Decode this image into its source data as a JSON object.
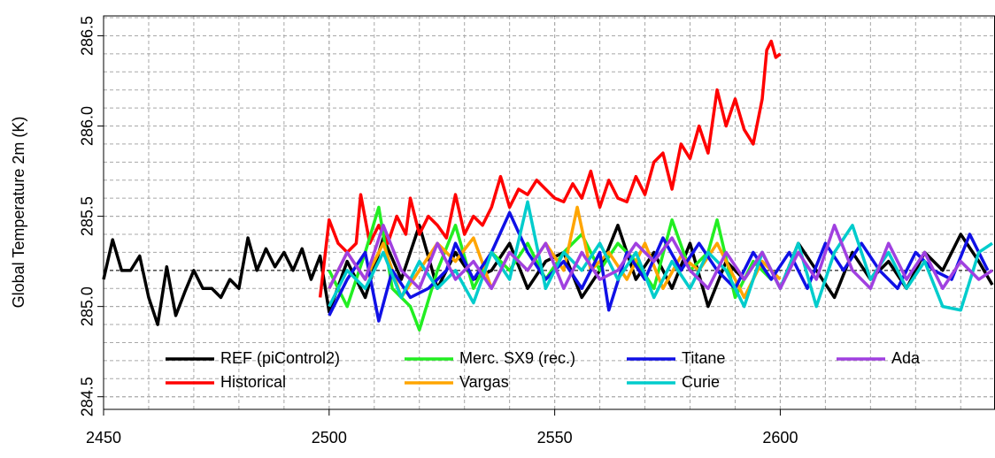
{
  "chart_data": {
    "type": "line",
    "y_label": "Global Temperature 2m (K)",
    "xlim": [
      2450,
      2647.5
    ],
    "ylim": [
      284.43,
      286.61
    ],
    "xticks": [
      2450,
      2500,
      2550,
      2600
    ],
    "yticks": [
      284.5,
      {
        "value": 285,
        "label": "285.0"
      },
      285.5,
      {
        "value": 286,
        "label": "286.0"
      },
      286.5
    ],
    "grid": true,
    "reference_line": 285.2,
    "legend": "bottom",
    "series": [
      {
        "name": "REF (piControl2)",
        "color": "#000000",
        "x": [
          2450,
          2452,
          2454,
          2456,
          2458,
          2460,
          2462,
          2464,
          2466,
          2468,
          2470,
          2472,
          2474,
          2476,
          2478,
          2480,
          2482,
          2484,
          2486,
          2488,
          2490,
          2492,
          2494,
          2496,
          2498,
          2500,
          2504,
          2508,
          2512,
          2516,
          2520,
          2524,
          2528,
          2532,
          2536,
          2540,
          2544,
          2548,
          2552,
          2556,
          2560,
          2564,
          2568,
          2572,
          2576,
          2580,
          2584,
          2588,
          2592,
          2596,
          2600,
          2604,
          2608,
          2612,
          2616,
          2620,
          2624,
          2628,
          2632,
          2636,
          2640,
          2644,
          2647
        ],
        "values": [
          285.15,
          285.37,
          285.2,
          285.2,
          285.28,
          285.05,
          284.9,
          285.22,
          284.95,
          285.08,
          285.2,
          285.1,
          285.1,
          285.05,
          285.15,
          285.1,
          285.38,
          285.2,
          285.32,
          285.22,
          285.3,
          285.2,
          285.32,
          285.15,
          285.28,
          284.97,
          285.25,
          285.05,
          285.38,
          285.15,
          285.45,
          285.1,
          285.3,
          285.15,
          285.2,
          285.35,
          285.1,
          285.25,
          285.3,
          285.05,
          285.2,
          285.45,
          285.15,
          285.3,
          285.1,
          285.35,
          285.0,
          285.25,
          285.15,
          285.3,
          285.1,
          285.35,
          285.2,
          285.05,
          285.3,
          285.15,
          285.25,
          285.1,
          285.3,
          285.2,
          285.4,
          285.25,
          285.12
        ]
      },
      {
        "name": "Historical",
        "color": "#ff0000",
        "x": [
          2498,
          2500,
          2502,
          2504,
          2506,
          2507,
          2509,
          2511,
          2513,
          2515,
          2517,
          2518,
          2520,
          2522,
          2524,
          2526,
          2528,
          2530,
          2532,
          2534,
          2536,
          2538,
          2540,
          2542,
          2544,
          2546,
          2548,
          2550,
          2552,
          2554,
          2556,
          2558,
          2560,
          2562,
          2564,
          2566,
          2568,
          2570,
          2572,
          2574,
          2576,
          2578,
          2580,
          2582,
          2584,
          2586,
          2588,
          2590,
          2592,
          2594,
          2596,
          2597,
          2598,
          2599,
          2600
        ],
        "values": [
          285.05,
          285.48,
          285.35,
          285.3,
          285.35,
          285.62,
          285.35,
          285.45,
          285.35,
          285.5,
          285.4,
          285.6,
          285.4,
          285.5,
          285.45,
          285.38,
          285.62,
          285.4,
          285.5,
          285.45,
          285.55,
          285.72,
          285.55,
          285.65,
          285.62,
          285.7,
          285.65,
          285.6,
          285.58,
          285.68,
          285.6,
          285.75,
          285.55,
          285.7,
          285.6,
          285.58,
          285.72,
          285.62,
          285.8,
          285.85,
          285.65,
          285.9,
          285.82,
          286.0,
          285.85,
          286.2,
          286.0,
          286.15,
          285.98,
          285.9,
          286.15,
          286.42,
          286.47,
          286.38,
          286.4
        ]
      },
      {
        "name": "Merc. SX9 (rec.)",
        "color": "#22ee22",
        "x": [
          2500,
          2504,
          2508,
          2511,
          2514,
          2518,
          2520,
          2524,
          2528,
          2532,
          2536,
          2540,
          2544,
          2548,
          2552,
          2556,
          2560,
          2564,
          2568,
          2572,
          2576,
          2580,
          2584,
          2586,
          2590,
          2594,
          2598
        ],
        "values": [
          285.2,
          285.0,
          285.3,
          285.55,
          285.1,
          285.0,
          284.87,
          285.2,
          285.45,
          285.1,
          285.3,
          285.2,
          285.35,
          285.15,
          285.3,
          285.4,
          285.2,
          285.35,
          285.25,
          285.1,
          285.48,
          285.2,
          285.3,
          285.48,
          285.05,
          285.25,
          285.15
        ]
      },
      {
        "name": "Vargas",
        "color": "#ffa500",
        "x": [
          2500,
          2504,
          2508,
          2512,
          2516,
          2520,
          2524,
          2528,
          2532,
          2536,
          2540,
          2544,
          2548,
          2552,
          2555,
          2558,
          2562,
          2566,
          2570,
          2574,
          2578,
          2582,
          2586,
          2590,
          2592,
          2596,
          2600
        ],
        "values": [
          285.1,
          285.3,
          285.15,
          285.35,
          285.05,
          285.2,
          285.35,
          285.25,
          285.38,
          285.1,
          285.3,
          285.2,
          285.35,
          285.2,
          285.55,
          285.2,
          285.3,
          285.15,
          285.35,
          285.1,
          285.28,
          285.2,
          285.35,
          285.15,
          285.05,
          285.25,
          285.15
        ]
      },
      {
        "name": "Titane",
        "color": "#1010e6",
        "x": [
          2500,
          2504,
          2508,
          2511,
          2514,
          2518,
          2522,
          2526,
          2528,
          2532,
          2536,
          2540,
          2544,
          2548,
          2552,
          2556,
          2560,
          2562,
          2566,
          2570,
          2574,
          2578,
          2582,
          2586,
          2590,
          2594,
          2598,
          2602,
          2606,
          2610,
          2614,
          2618,
          2622,
          2626,
          2630,
          2634,
          2638,
          2642,
          2646
        ],
        "values": [
          284.95,
          285.15,
          285.3,
          284.92,
          285.2,
          285.05,
          285.1,
          285.2,
          285.35,
          285.15,
          285.3,
          285.52,
          285.3,
          285.15,
          285.25,
          285.1,
          285.3,
          284.98,
          285.3,
          285.15,
          285.38,
          285.2,
          285.35,
          285.2,
          285.1,
          285.3,
          285.15,
          285.3,
          285.1,
          285.35,
          285.2,
          285.35,
          285.2,
          285.1,
          285.3,
          285.2,
          285.15,
          285.4,
          285.2
        ]
      },
      {
        "name": "Curie",
        "color": "#00cccc",
        "x": [
          2500,
          2504,
          2508,
          2512,
          2516,
          2520,
          2524,
          2528,
          2532,
          2536,
          2540,
          2544,
          2548,
          2552,
          2556,
          2560,
          2564,
          2568,
          2572,
          2576,
          2580,
          2584,
          2588,
          2592,
          2596,
          2600,
          2604,
          2608,
          2612,
          2616,
          2620,
          2624,
          2628,
          2632,
          2636,
          2640,
          2644,
          2647
        ],
        "values": [
          285.0,
          285.2,
          285.1,
          285.3,
          285.05,
          285.25,
          285.1,
          285.2,
          285.02,
          285.3,
          285.15,
          285.58,
          285.1,
          285.3,
          285.2,
          285.35,
          285.15,
          285.3,
          285.05,
          285.25,
          285.1,
          285.3,
          285.2,
          285.0,
          285.3,
          285.1,
          285.35,
          285.0,
          285.3,
          285.45,
          285.15,
          285.3,
          285.1,
          285.25,
          285.0,
          284.98,
          285.3,
          285.35
        ]
      },
      {
        "name": "Ada",
        "color": "#a040e0",
        "x": [
          2500,
          2504,
          2508,
          2512,
          2516,
          2520,
          2524,
          2528,
          2532,
          2536,
          2540,
          2544,
          2548,
          2552,
          2556,
          2560,
          2564,
          2568,
          2572,
          2576,
          2580,
          2584,
          2588,
          2592,
          2596,
          2600,
          2604,
          2608,
          2612,
          2616,
          2620,
          2624,
          2628,
          2632,
          2636,
          2640,
          2644,
          2647
        ],
        "values": [
          285.1,
          285.3,
          285.15,
          285.45,
          285.2,
          285.1,
          285.35,
          285.15,
          285.25,
          285.1,
          285.3,
          285.2,
          285.35,
          285.1,
          285.3,
          285.15,
          285.2,
          285.35,
          285.25,
          285.38,
          285.2,
          285.1,
          285.3,
          285.15,
          285.3,
          285.1,
          285.3,
          285.15,
          285.45,
          285.2,
          285.1,
          285.35,
          285.15,
          285.3,
          285.1,
          285.25,
          285.15,
          285.2
        ]
      }
    ]
  }
}
